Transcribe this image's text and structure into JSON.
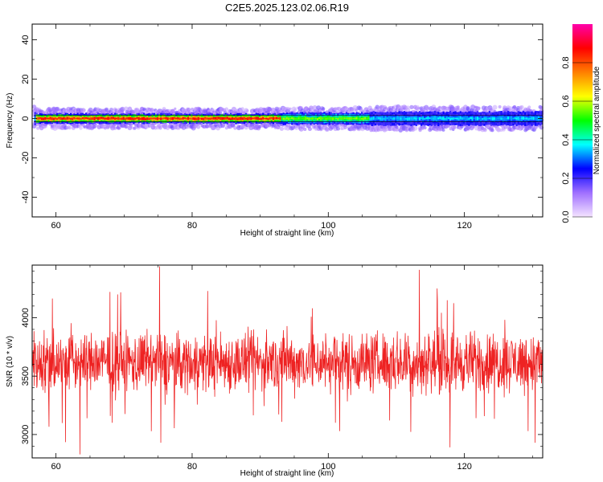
{
  "title": "C2E5.2025.123.02.06.R19",
  "chart_data": [
    {
      "type": "heatmap",
      "xlabel": "Height of straight line (km)",
      "ylabel": "Frequency (Hz)",
      "xlim": [
        56.5,
        131.5
      ],
      "ylim": [
        -50,
        48
      ],
      "xticks": [
        60,
        80,
        100,
        120
      ],
      "yticks": [
        -40,
        -20,
        0,
        20,
        40
      ],
      "colorbar": {
        "label": "Normalized spectral amplitude",
        "range": [
          0,
          1
        ],
        "ticks": [
          "0.0",
          "0.2",
          "0.4",
          "0.6",
          "0.8"
        ],
        "colors": [
          "#f4e4ff",
          "#a070ff",
          "#0000ff",
          "#00ffff",
          "#00ff00",
          "#ffff00",
          "#ff7f00",
          "#ff0000",
          "#ff00aa"
        ]
      },
      "band": {
        "center_hz": 0,
        "segments": [
          {
            "x": [
              57,
              93
            ],
            "peak_amplitude": 0.85,
            "half_width_hz": 2.5
          },
          {
            "x": [
              93,
              106
            ],
            "peak_amplitude": 0.55,
            "half_width_hz": 3.0
          },
          {
            "x": [
              106,
              131.5
            ],
            "peak_amplitude": 0.35,
            "half_width_hz": 3.5
          }
        ]
      }
    },
    {
      "type": "line",
      "xlabel": "Height of straight line (km)",
      "ylabel": "SNR (10 * v/v)",
      "xlim": [
        56.5,
        131.5
      ],
      "ylim": [
        2800,
        4450
      ],
      "xticks": [
        60,
        80,
        100,
        120
      ],
      "yticks": [
        3000,
        3500,
        4000
      ],
      "color": "#ee2222",
      "series": [
        {
          "mean": 3620,
          "noise_amplitude": 180,
          "spikes": [
            {
              "x": 63.5,
              "y": 2830
            },
            {
              "x": 75.2,
              "y": 4440
            },
            {
              "x": 75.4,
              "y": 2930
            },
            {
              "x": 113.4,
              "y": 4410
            },
            {
              "x": 116.0,
              "y": 4250
            },
            {
              "x": 117.9,
              "y": 2890
            },
            {
              "x": 61.4,
              "y": 2935
            },
            {
              "x": 130.4,
              "y": 2930
            }
          ]
        }
      ]
    }
  ]
}
